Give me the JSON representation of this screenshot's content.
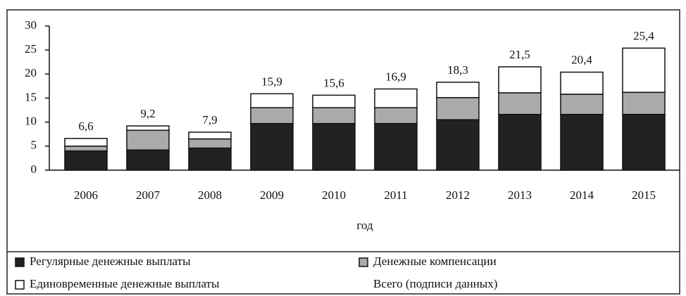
{
  "chart_data": {
    "type": "stacked_bar",
    "categories": [
      "2006",
      "2007",
      "2008",
      "2009",
      "2010",
      "2011",
      "2012",
      "2013",
      "2014",
      "2015"
    ],
    "x_label": "год",
    "series": [
      {
        "name": "Регулярные денежные выплаты",
        "color": "#222222",
        "values": [
          4,
          4.2,
          4.6,
          9.7,
          9.7,
          9.7,
          10.5,
          11.6,
          11.6,
          11.6
        ]
      },
      {
        "name": "Денежные компенсации",
        "color": "#aaaaaa",
        "values": [
          1,
          4.1,
          1.9,
          3.3,
          3.3,
          3.3,
          4.6,
          4.5,
          4.2,
          4.6
        ]
      },
      {
        "name": "Единовременные денежные выплаты",
        "color": "#ffffff",
        "values": [
          1.6,
          0.9,
          1.4,
          2.9,
          2.6,
          3.9,
          3.2,
          5.4,
          4.6,
          9.2
        ]
      }
    ],
    "totals": {
      "name": "Всего (подписи данных)",
      "values": [
        6.6,
        9.2,
        7.9,
        15.9,
        15.6,
        16.9,
        18.3,
        21.5,
        20.4,
        25.4
      ],
      "value_labels": [
        "6,6",
        "9,2",
        "7,9",
        "15,9",
        "15,6",
        "16,9",
        "18,3",
        "21,5",
        "20,4",
        "25,4"
      ]
    },
    "ylim": [
      0,
      30
    ],
    "yticks": [
      0,
      5,
      10,
      15,
      20,
      25,
      30
    ]
  }
}
